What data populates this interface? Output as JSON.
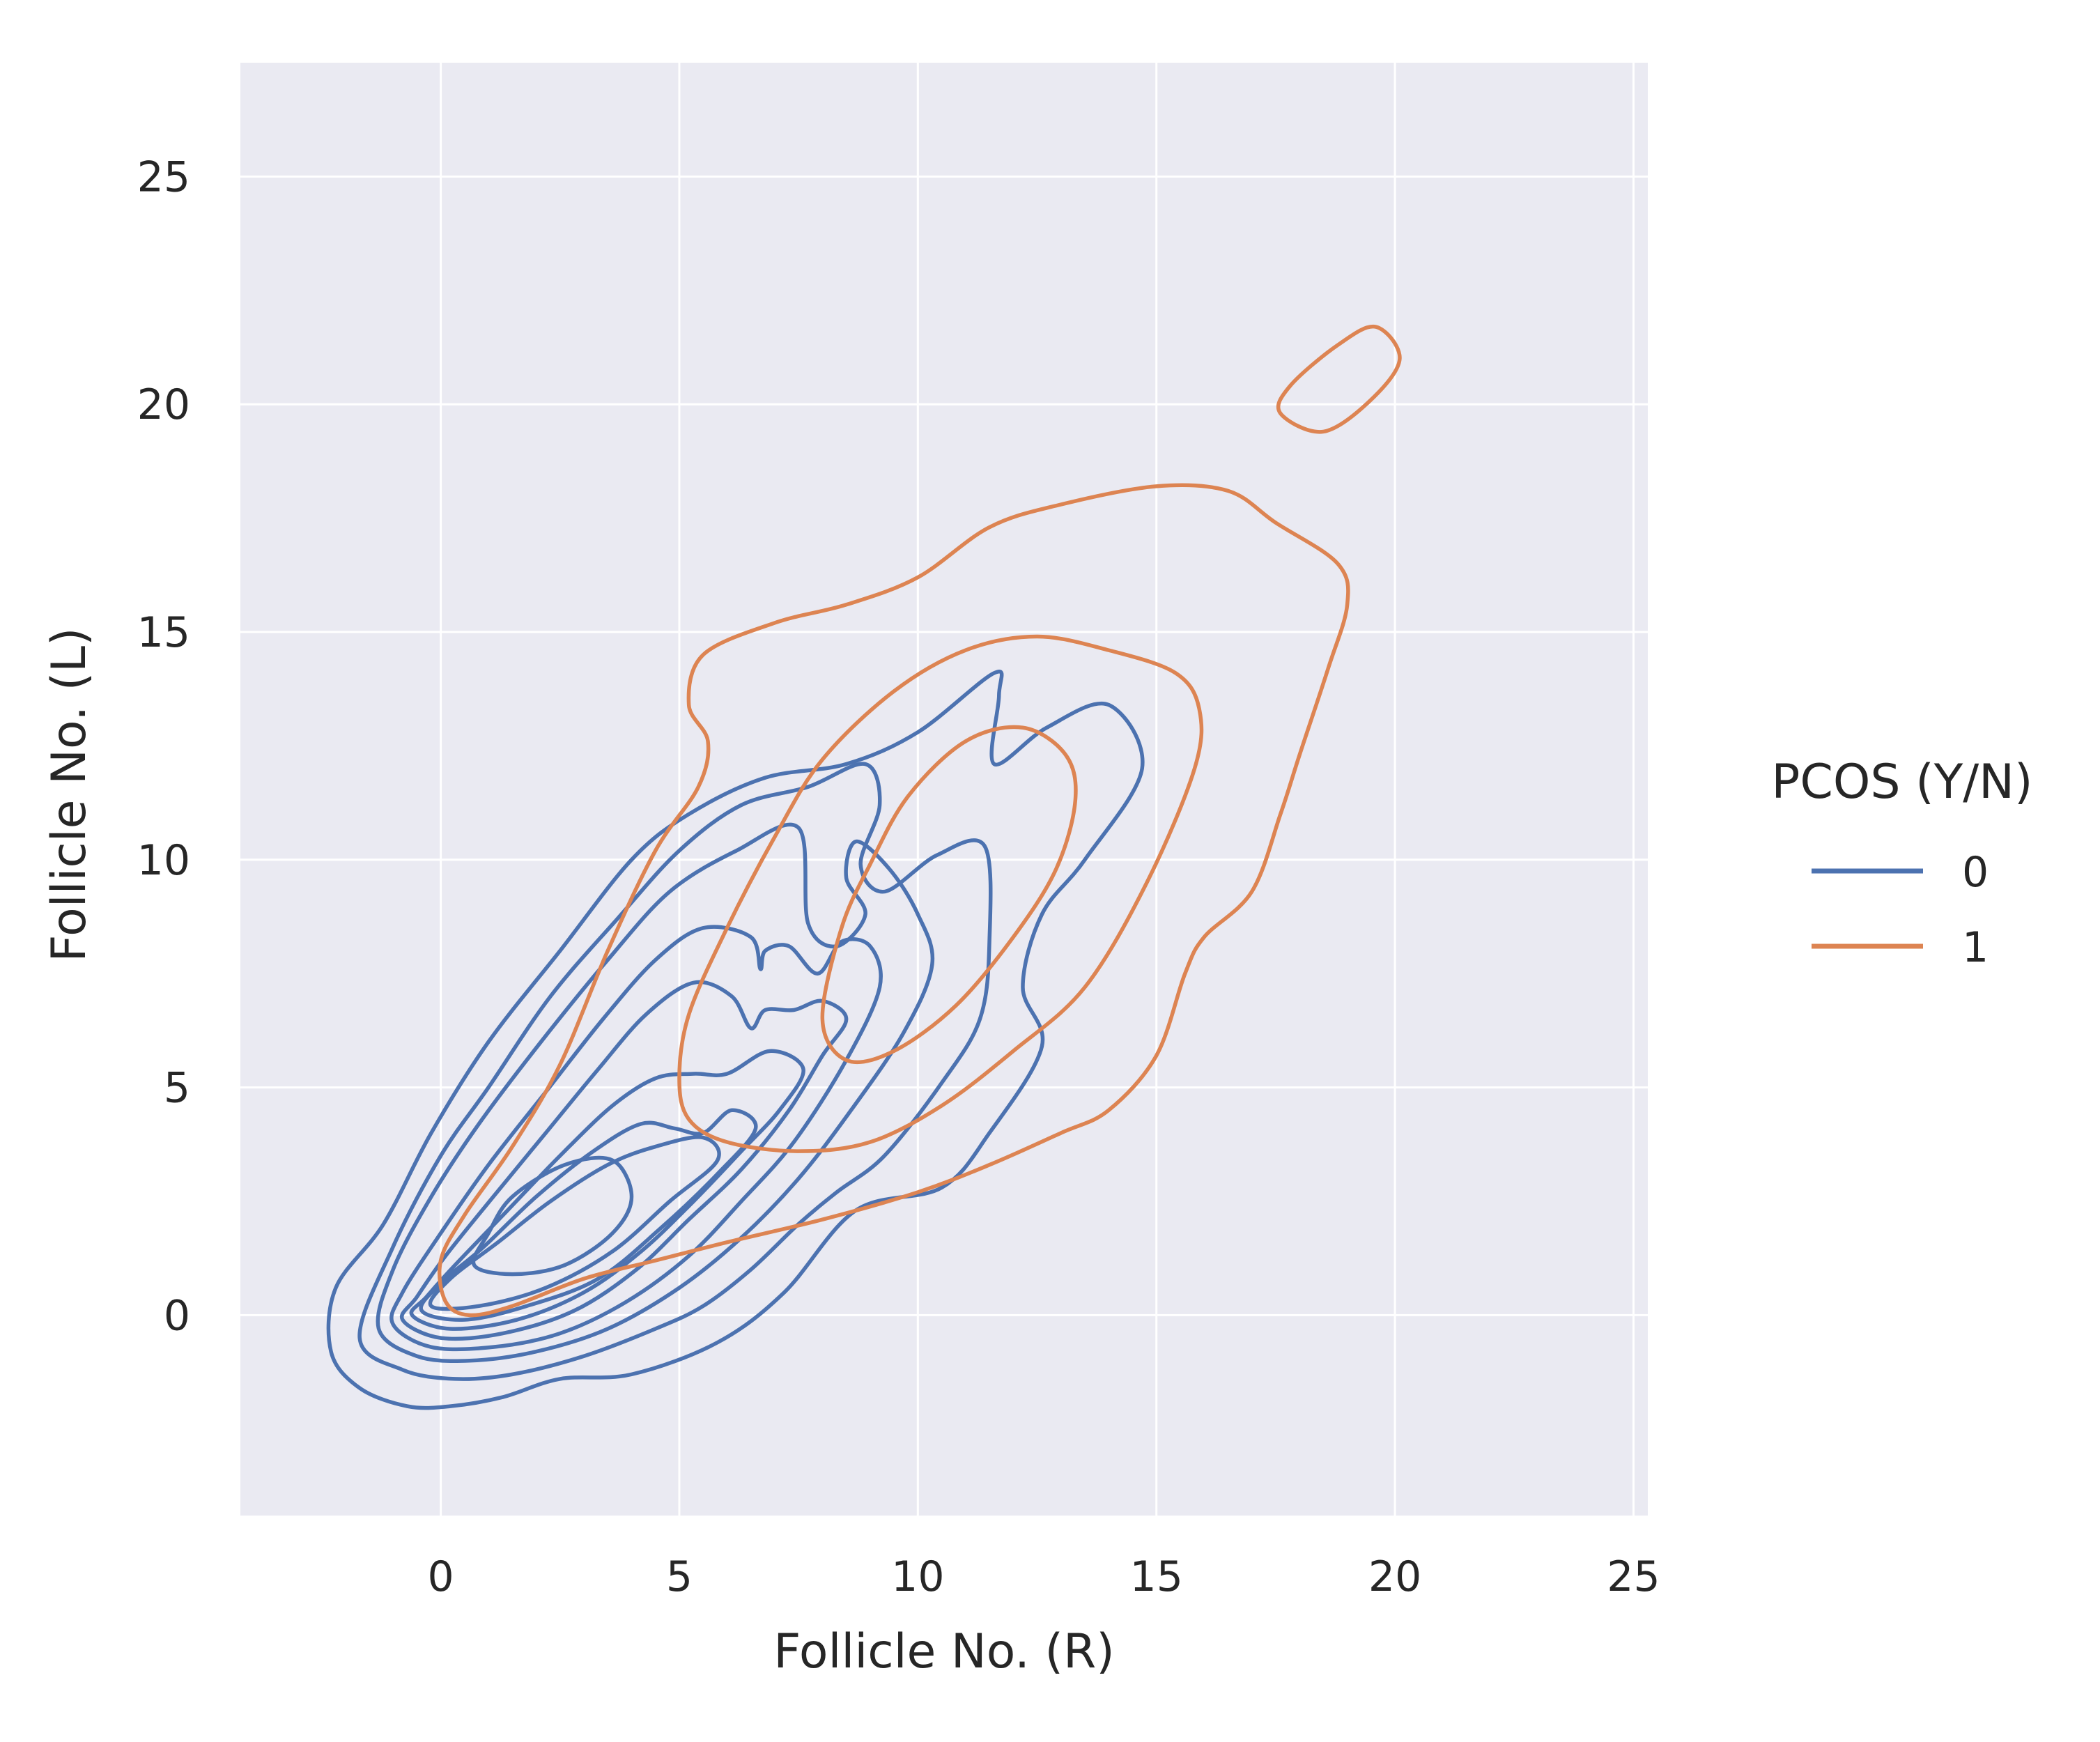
{
  "chart_data": {
    "type": "kde-contour",
    "title": "",
    "xlabel": "Follicle No. (R)",
    "ylabel": "Follicle No. (L)",
    "xlim": [
      -4.2,
      25.3
    ],
    "ylim": [
      -4.4,
      27.5
    ],
    "xticks": [
      0,
      5,
      10,
      15,
      20,
      25
    ],
    "yticks": [
      0,
      5,
      10,
      15,
      20,
      25
    ],
    "grid": true,
    "legend": {
      "title": "PCOS (Y/N)",
      "placement": "outside-right"
    },
    "series": [
      {
        "name": "0",
        "color": "#4c72b0",
        "contours": [
          [
            [
              -2.3,
              -0.8
            ],
            [
              -1.7,
              -1.6
            ],
            [
              -0.7,
              -2
            ],
            [
              0.2,
              -2
            ],
            [
              1.3,
              -1.8
            ],
            [
              2.5,
              -1.4
            ],
            [
              4,
              -1.3
            ],
            [
              5.8,
              -0.6
            ],
            [
              7.2,
              0.5
            ],
            [
              8.7,
              2.3
            ],
            [
              10.5,
              2.8
            ],
            [
              11.5,
              4
            ],
            [
              12.6,
              5.9
            ],
            [
              12.2,
              7.2
            ],
            [
              12.6,
              8.8
            ],
            [
              13.5,
              10
            ],
            [
              14.7,
              12
            ],
            [
              14,
              13.4
            ],
            [
              12.7,
              12.9
            ],
            [
              11.6,
              12.1
            ],
            [
              11.7,
              13.6
            ],
            [
              11.6,
              14.1
            ],
            [
              10,
              12.8
            ],
            [
              8.5,
              12.1
            ],
            [
              6.8,
              11.8
            ],
            [
              5.2,
              11
            ],
            [
              4,
              10
            ],
            [
              2.5,
              8
            ],
            [
              1,
              6
            ],
            [
              -0.2,
              4
            ],
            [
              -1.2,
              2
            ],
            [
              -2.2,
              0.6
            ],
            [
              -2.3,
              -0.8
            ]
          ],
          [
            [
              -1.7,
              -0.5
            ],
            [
              -0.8,
              -1.2
            ],
            [
              0.3,
              -1.4
            ],
            [
              1.5,
              -1.3
            ],
            [
              3,
              -0.9
            ],
            [
              4.5,
              -0.3
            ],
            [
              5.5,
              0.2
            ],
            [
              6.5,
              1
            ],
            [
              7.5,
              2
            ],
            [
              8.3,
              2.7
            ],
            [
              9.3,
              3.5
            ],
            [
              10.5,
              5.1
            ],
            [
              11.3,
              6.5
            ],
            [
              11.5,
              8.2
            ],
            [
              11.4,
              10.3
            ],
            [
              10.4,
              10.1
            ],
            [
              9.3,
              9.3
            ],
            [
              8.8,
              9.9
            ],
            [
              9.2,
              11.2
            ],
            [
              8.9,
              12.1
            ],
            [
              7.7,
              11.6
            ],
            [
              6.3,
              11.2
            ],
            [
              5,
              10.2
            ],
            [
              3.7,
              8.7
            ],
            [
              2.3,
              7
            ],
            [
              1,
              5
            ],
            [
              0,
              3.5
            ],
            [
              -1,
              1.5
            ],
            [
              -1.7,
              -0.5
            ]
          ],
          [
            [
              -1.3,
              -0.3
            ],
            [
              -0.5,
              -0.9
            ],
            [
              0.6,
              -1
            ],
            [
              2,
              -0.8
            ],
            [
              3.5,
              -0.3
            ],
            [
              5,
              0.6
            ],
            [
              6.3,
              1.7
            ],
            [
              7.5,
              3
            ],
            [
              8.6,
              4.5
            ],
            [
              9.7,
              6.2
            ],
            [
              10.3,
              7.7
            ],
            [
              10,
              8.8
            ],
            [
              9.4,
              9.8
            ],
            [
              8.7,
              10.4
            ],
            [
              8.5,
              9.6
            ],
            [
              8.9,
              8.8
            ],
            [
              8.3,
              8.1
            ],
            [
              7.7,
              8.6
            ],
            [
              7.5,
              10.7
            ],
            [
              6.2,
              10.2
            ],
            [
              4.8,
              9.3
            ],
            [
              3.5,
              7.8
            ],
            [
              2.1,
              6
            ],
            [
              0.8,
              4.2
            ],
            [
              -0.2,
              2.6
            ],
            [
              -1,
              1
            ],
            [
              -1.3,
              -0.3
            ]
          ],
          [
            [
              -1,
              -0.2
            ],
            [
              -0.2,
              -0.7
            ],
            [
              1.1,
              -0.7
            ],
            [
              2.5,
              -0.4
            ],
            [
              3.9,
              0.3
            ],
            [
              5.2,
              1.3
            ],
            [
              6.3,
              2.5
            ],
            [
              7.4,
              3.8
            ],
            [
              8.5,
              5.6
            ],
            [
              9.2,
              7.2
            ],
            [
              9,
              8.1
            ],
            [
              8.4,
              8.2
            ],
            [
              7.9,
              7.5
            ],
            [
              7.3,
              8.1
            ],
            [
              6.8,
              8
            ],
            [
              6.7,
              7.6
            ],
            [
              6.5,
              8.3
            ],
            [
              5.5,
              8.5
            ],
            [
              4.5,
              7.8
            ],
            [
              3.4,
              6.5
            ],
            [
              2.2,
              4.9
            ],
            [
              1,
              3.3
            ],
            [
              0,
              1.8
            ],
            [
              -0.8,
              0.5
            ],
            [
              -1,
              -0.2
            ]
          ],
          [
            [
              -0.8,
              -0.1
            ],
            [
              0,
              -0.5
            ],
            [
              1.3,
              -0.4
            ],
            [
              2.8,
              0.1
            ],
            [
              4.1,
              1
            ],
            [
              5.2,
              2.1
            ],
            [
              6.3,
              3.2
            ],
            [
              7.3,
              4.5
            ],
            [
              8,
              5.7
            ],
            [
              8.5,
              6.5
            ],
            [
              8,
              6.9
            ],
            [
              7.4,
              6.7
            ],
            [
              6.8,
              6.7
            ],
            [
              6.5,
              6.3
            ],
            [
              6.1,
              7
            ],
            [
              5.3,
              7.3
            ],
            [
              4.3,
              6.6
            ],
            [
              3.3,
              5.4
            ],
            [
              2.2,
              4
            ],
            [
              1.1,
              2.6
            ],
            [
              0.1,
              1.3
            ],
            [
              -0.5,
              0.4
            ],
            [
              -0.8,
              -0.1
            ]
          ],
          [
            [
              -0.6,
              0
            ],
            [
              0.2,
              -0.3
            ],
            [
              1.6,
              -0.1
            ],
            [
              3,
              0.5
            ],
            [
              4.2,
              1.4
            ],
            [
              5.3,
              2.5
            ],
            [
              6.3,
              3.6
            ],
            [
              7.1,
              4.5
            ],
            [
              7.6,
              5.4
            ],
            [
              6.9,
              5.8
            ],
            [
              6,
              5.3
            ],
            [
              5.3,
              5.3
            ],
            [
              4.5,
              5.2
            ],
            [
              3.6,
              4.6
            ],
            [
              2.5,
              3.5
            ],
            [
              1.4,
              2.3
            ],
            [
              0.3,
              1.1
            ],
            [
              -0.3,
              0.4
            ],
            [
              -0.6,
              0
            ]
          ],
          [
            [
              -0.4,
              0.1
            ],
            [
              0.5,
              -0.1
            ],
            [
              1.8,
              0.2
            ],
            [
              3.3,
              0.8
            ],
            [
              4.6,
              1.9
            ],
            [
              5.8,
              3.1
            ],
            [
              6.6,
              4.1
            ],
            [
              6.1,
              4.5
            ],
            [
              5.5,
              4
            ],
            [
              4.9,
              4.1
            ],
            [
              4.2,
              4.2
            ],
            [
              3.2,
              3.6
            ],
            [
              2,
              2.6
            ],
            [
              0.9,
              1.5
            ],
            [
              0,
              0.7
            ],
            [
              -0.4,
              0.1
            ]
          ],
          [
            [
              -0.2,
              0.2
            ],
            [
              0.8,
              0.2
            ],
            [
              2.2,
              0.6
            ],
            [
              3.6,
              1.4
            ],
            [
              4.8,
              2.5
            ],
            [
              5.8,
              3.4
            ],
            [
              5.5,
              3.9
            ],
            [
              4.5,
              3.7
            ],
            [
              3.5,
              3.3
            ],
            [
              2.3,
              2.5
            ],
            [
              1.2,
              1.6
            ],
            [
              0.2,
              0.8
            ],
            [
              -0.2,
              0.2
            ]
          ],
          [
            [
              0.7,
              1.1
            ],
            [
              1.5,
              0.9
            ],
            [
              2.6,
              1.1
            ],
            [
              3.6,
              1.8
            ],
            [
              4,
              2.6
            ],
            [
              3.6,
              3.4
            ],
            [
              2.6,
              3.3
            ],
            [
              1.5,
              2.6
            ],
            [
              1,
              1.8
            ],
            [
              0.7,
              1.1
            ]
          ]
        ]
      },
      {
        "name": "1",
        "color": "#dd8452",
        "contours": [
          [
            [
              0.1,
              0.3
            ],
            [
              0.6,
              0
            ],
            [
              1.5,
              0.2
            ],
            [
              3,
              0.8
            ],
            [
              4.5,
              1.2
            ],
            [
              6,
              1.6
            ],
            [
              8,
              2.1
            ],
            [
              10,
              2.7
            ],
            [
              11.5,
              3.3
            ],
            [
              13,
              4
            ],
            [
              14,
              4.5
            ],
            [
              15,
              5.7
            ],
            [
              15.6,
              7.5
            ],
            [
              16,
              8.3
            ],
            [
              17,
              9.3
            ],
            [
              17.6,
              11
            ],
            [
              18,
              12.3
            ],
            [
              18.6,
              14.2
            ],
            [
              19,
              15.6
            ],
            [
              18.8,
              16.5
            ],
            [
              17.5,
              17.4
            ],
            [
              16.5,
              18.1
            ],
            [
              15,
              18.2
            ],
            [
              13,
              17.8
            ],
            [
              11.5,
              17.3
            ],
            [
              10,
              16.2
            ],
            [
              8.5,
              15.6
            ],
            [
              7,
              15.2
            ],
            [
              5.5,
              14.5
            ],
            [
              5.2,
              13.4
            ],
            [
              5.6,
              12.6
            ],
            [
              5.4,
              11.6
            ],
            [
              4.5,
              10.2
            ],
            [
              3.5,
              8
            ],
            [
              2.5,
              5.5
            ],
            [
              1.5,
              3.7
            ],
            [
              0.5,
              2.2
            ],
            [
              0,
              1.2
            ],
            [
              0.1,
              0.3
            ]
          ],
          [
            [
              5,
              5.2
            ],
            [
              5.2,
              4.3
            ],
            [
              6,
              3.8
            ],
            [
              7.5,
              3.6
            ],
            [
              9,
              3.8
            ],
            [
              10.5,
              4.6
            ],
            [
              12,
              5.8
            ],
            [
              13.5,
              7.2
            ],
            [
              14.8,
              9.5
            ],
            [
              15.8,
              12
            ],
            [
              15.9,
              13.3
            ],
            [
              15.4,
              14.1
            ],
            [
              14,
              14.6
            ],
            [
              12.5,
              14.9
            ],
            [
              11,
              14.6
            ],
            [
              9.5,
              13.7
            ],
            [
              8,
              12.2
            ],
            [
              7,
              10.5
            ],
            [
              6,
              8.5
            ],
            [
              5.2,
              6.6
            ],
            [
              5,
              5.2
            ]
          ],
          [
            [
              8,
              6.5
            ],
            [
              8.5,
              5.6
            ],
            [
              9.5,
              5.8
            ],
            [
              10.8,
              6.8
            ],
            [
              12,
              8.3
            ],
            [
              12.9,
              9.8
            ],
            [
              13.3,
              11.3
            ],
            [
              13.1,
              12.3
            ],
            [
              12.2,
              12.9
            ],
            [
              11,
              12.6
            ],
            [
              9.8,
              11.4
            ],
            [
              9,
              9.9
            ],
            [
              8.4,
              8.5
            ],
            [
              8,
              6.5
            ]
          ],
          [
            [
              17.6,
              19.8
            ],
            [
              18.5,
              19.4
            ],
            [
              19.5,
              20.1
            ],
            [
              20.1,
              21
            ],
            [
              19.6,
              21.7
            ],
            [
              18.8,
              21.3
            ],
            [
              17.8,
              20.4
            ],
            [
              17.6,
              19.8
            ]
          ]
        ]
      }
    ]
  }
}
